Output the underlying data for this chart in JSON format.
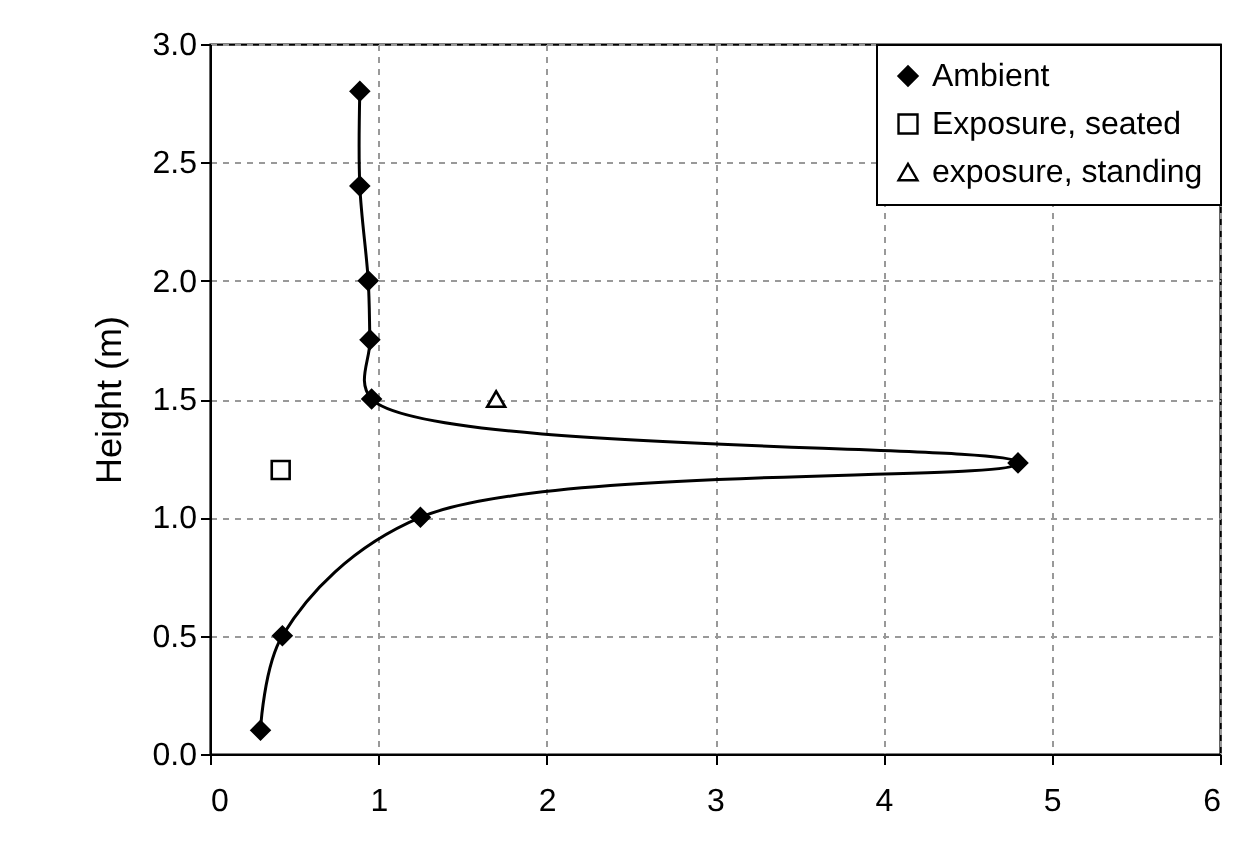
{
  "chart_data": {
    "type": "line",
    "ylabel": "Height (m)",
    "xlim": [
      0,
      6
    ],
    "xticks": [
      0,
      1,
      2,
      3,
      4,
      5,
      6
    ],
    "ylim": [
      0,
      3
    ],
    "yticks": [
      {
        "value": 0,
        "label": "0.0"
      },
      {
        "value": 0.5,
        "label": "0.5"
      },
      {
        "value": 1,
        "label": "1.0"
      },
      {
        "value": 1.5,
        "label": "1.5"
      },
      {
        "value": 2,
        "label": "2.0"
      },
      {
        "value": 2.5,
        "label": "2.5"
      },
      {
        "value": 3,
        "label": "3.0"
      }
    ],
    "grid": true,
    "legend": "top right",
    "series": [
      {
        "name": "Ambient",
        "marker": "diamond",
        "color": "#000000",
        "x": [
          0.3,
          0.43,
          1.25,
          4.8,
          0.96,
          0.95,
          0.94,
          0.89,
          0.89
        ],
        "values": [
          0.1,
          0.5,
          1.0,
          1.23,
          1.5,
          1.75,
          2.0,
          2.4,
          2.8
        ]
      },
      {
        "name": "Exposure, seated",
        "type": "scatter",
        "marker": "square",
        "color": "#000000",
        "x": [
          0.42
        ],
        "values": [
          1.2
        ]
      },
      {
        "name": "exposure, standing",
        "type": "scatter",
        "marker": "triangle",
        "color": "#000000",
        "x": [
          1.7
        ],
        "values": [
          1.5
        ]
      }
    ]
  }
}
